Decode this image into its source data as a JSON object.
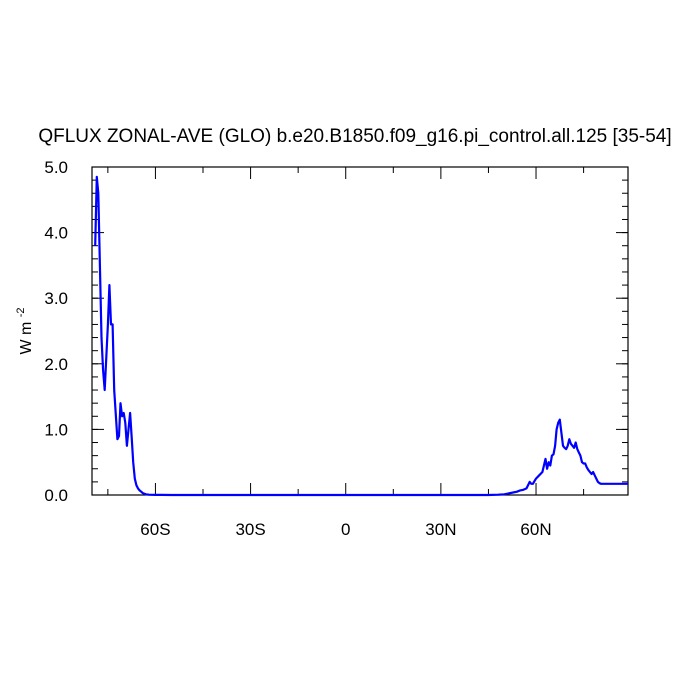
{
  "chart_data": {
    "type": "line",
    "title": "QFLUX ZONAL-AVE (GLO) b.e20.B1850.f09_g16.pi_control.all.125 [35-54]",
    "ylabel": "W m",
    "ylabel_superscript": "-2",
    "xlabel": "",
    "xlim": [
      -80,
      89
    ],
    "ylim": [
      0,
      5.0
    ],
    "grid": false,
    "legend": "none",
    "color": "#0000ff",
    "x_ticks": [
      {
        "value": -60,
        "label": "60S"
      },
      {
        "value": -30,
        "label": "30S"
      },
      {
        "value": 0,
        "label": "0"
      },
      {
        "value": 30,
        "label": "30N"
      },
      {
        "value": 60,
        "label": "60N"
      }
    ],
    "y_ticks": [
      {
        "value": 0.0,
        "label": "0.0"
      },
      {
        "value": 1.0,
        "label": "1.0"
      },
      {
        "value": 2.0,
        "label": "2.0"
      },
      {
        "value": 3.0,
        "label": "3.0"
      },
      {
        "value": 4.0,
        "label": "4.0"
      },
      {
        "value": 5.0,
        "label": "5.0"
      }
    ],
    "series": [
      {
        "x": [
          -79,
          -78.5,
          -78,
          -77.5,
          -77,
          -76.5,
          -76,
          -75,
          -74.5,
          -74,
          -73.5,
          -73,
          -72,
          -71.5,
          -71,
          -70.5,
          -70,
          -69.5,
          -69,
          -68,
          -67.5,
          -67,
          -66.5,
          -66,
          -65.5,
          -65,
          -64.5,
          -64,
          -63.5,
          -63,
          -62,
          -61,
          -60,
          -58,
          -55,
          -50,
          -40,
          -30,
          -20,
          -10,
          0,
          10,
          20,
          30,
          40,
          45,
          48,
          50,
          52,
          54,
          55,
          56,
          57,
          58,
          58.5,
          59,
          60,
          61,
          62,
          63,
          63.5,
          64,
          64.5,
          65,
          65.5,
          66,
          66.5,
          67,
          67.5,
          68,
          68.5,
          69,
          69.5,
          70,
          70.5,
          71,
          71.5,
          72,
          72.5,
          73,
          73.5,
          74,
          74.5,
          75,
          75.5,
          76,
          76.5,
          77,
          77.5,
          78,
          78.5,
          79,
          79.5,
          80,
          80.5,
          81,
          81.5,
          82,
          82.5,
          83,
          84,
          85,
          86,
          87,
          88,
          89
        ],
        "y": [
          3.8,
          4.85,
          4.6,
          3.5,
          2.4,
          1.9,
          1.6,
          2.6,
          3.2,
          2.6,
          2.6,
          1.6,
          0.85,
          0.9,
          1.4,
          1.2,
          1.25,
          1.1,
          0.75,
          1.25,
          0.9,
          0.5,
          0.25,
          0.15,
          0.1,
          0.07,
          0.05,
          0.03,
          0.02,
          0.01,
          0.005,
          0.003,
          0.002,
          0.001,
          0.0,
          0.0,
          0.0,
          0.0,
          0.0,
          0.0,
          0.0,
          0.0,
          0.0,
          0.0,
          0.0,
          0.0,
          0.005,
          0.01,
          0.03,
          0.05,
          0.07,
          0.08,
          0.1,
          0.2,
          0.17,
          0.17,
          0.25,
          0.3,
          0.35,
          0.55,
          0.4,
          0.5,
          0.45,
          0.6,
          0.62,
          0.75,
          1.0,
          1.1,
          1.15,
          0.95,
          0.75,
          0.72,
          0.7,
          0.75,
          0.85,
          0.78,
          0.75,
          0.72,
          0.8,
          0.7,
          0.65,
          0.6,
          0.5,
          0.48,
          0.48,
          0.42,
          0.38,
          0.35,
          0.32,
          0.35,
          0.3,
          0.25,
          0.2,
          0.18,
          0.17,
          0.17,
          0.17,
          0.17,
          0.17,
          0.17,
          0.17,
          0.17,
          0.17,
          0.17,
          0.17,
          0.17
        ]
      }
    ]
  }
}
